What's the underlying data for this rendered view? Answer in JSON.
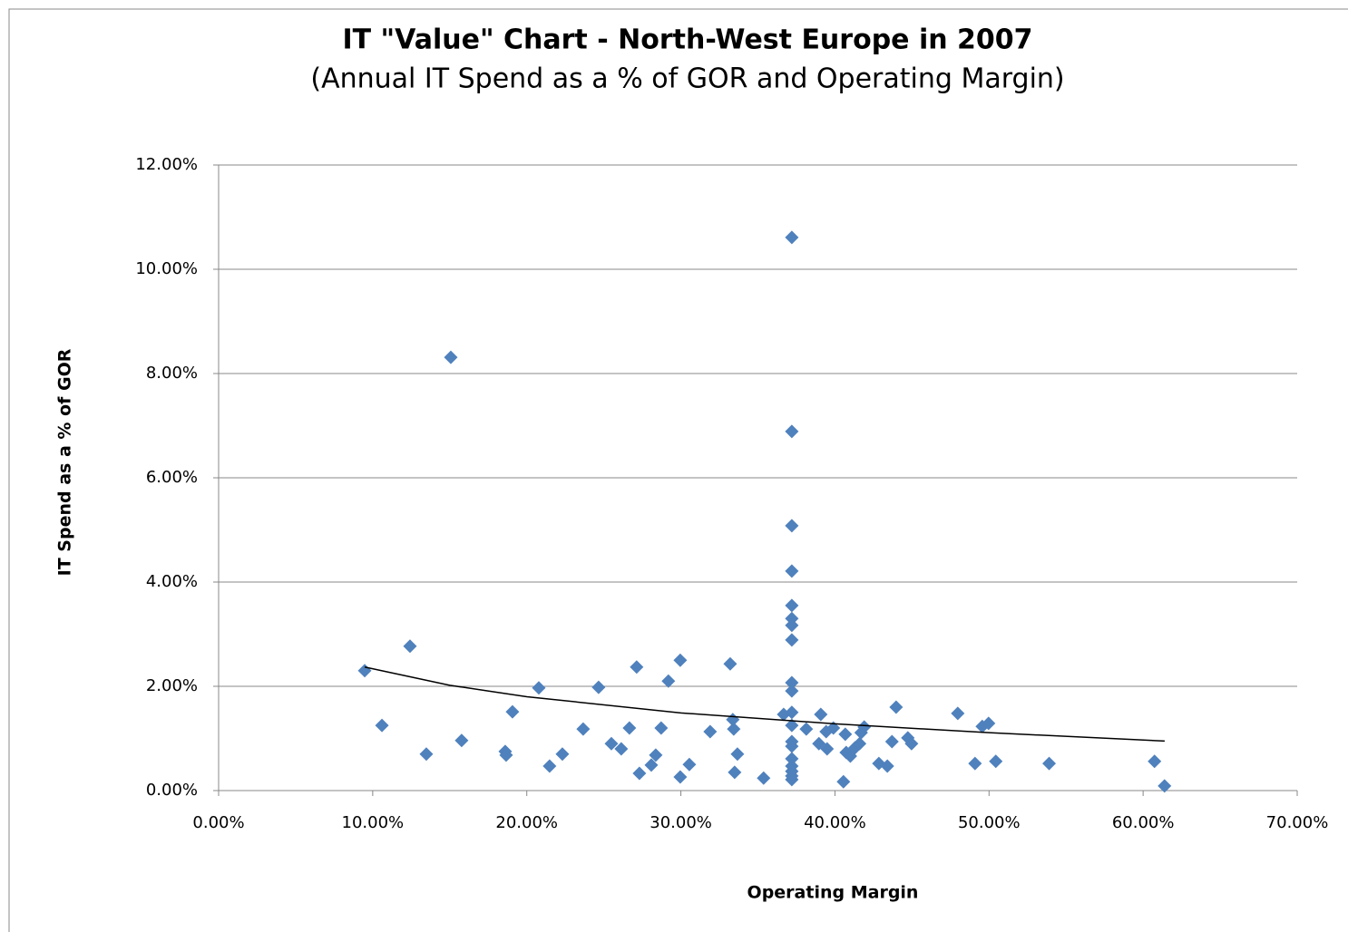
{
  "chart_data": {
    "type": "scatter",
    "title": "IT \"Value\" Chart - North-West Europe in 2007",
    "subtitle": "(Annual IT Spend as a % of GOR and Operating Margin)",
    "x_label": "Operating Margin",
    "y_label": "IT Spend as a % of GOR",
    "xlim": [
      0,
      70
    ],
    "xticks": [
      {
        "value": 0,
        "label": "0.00%"
      },
      {
        "value": 10,
        "label": "10.00%"
      },
      {
        "value": 20,
        "label": "20.00%"
      },
      {
        "value": 30,
        "label": "30.00%"
      },
      {
        "value": 40,
        "label": "40.00%"
      },
      {
        "value": 50,
        "label": "50.00%"
      },
      {
        "value": 60,
        "label": "60.00%"
      },
      {
        "value": 70,
        "label": "70.00%"
      }
    ],
    "ylim": [
      0,
      12
    ],
    "yticks": [
      {
        "value": 0,
        "label": "0.00%"
      },
      {
        "value": 2,
        "label": "2.00%"
      },
      {
        "value": 4,
        "label": "4.00%"
      },
      {
        "value": 6,
        "label": "6.00%"
      },
      {
        "value": 8,
        "label": "8.00%"
      },
      {
        "value": 10,
        "label": "10.00%"
      },
      {
        "value": 12,
        "label": "12.00%"
      }
    ],
    "grid": true,
    "series": [
      {
        "color": "#4f81bd",
        "x": [
          9.48,
          10.6,
          12.42,
          13.48,
          15.07,
          15.77,
          18.6,
          18.66,
          19.07,
          20.78,
          21.48,
          22.31,
          23.66,
          24.66,
          25.49,
          26.13,
          26.66,
          27.13,
          27.31,
          28.08,
          28.37,
          28.72,
          29.19,
          29.96,
          29.96,
          30.55,
          31.9,
          33.2,
          33.37,
          33.43,
          33.49,
          33.67,
          35.37,
          36.67,
          37.2,
          37.2,
          37.2,
          37.2,
          37.2,
          37.2,
          37.2,
          37.2,
          37.2,
          37.2,
          37.2,
          37.2,
          37.2,
          37.2,
          37.2,
          37.2,
          37.2,
          37.2,
          37.2,
          38.14,
          39.08,
          38.96,
          39.49,
          39.43,
          39.9,
          40.55,
          40.67,
          40.73,
          41.0,
          41.3,
          41.6,
          41.7,
          41.9,
          42.85,
          43.4,
          43.7,
          43.97,
          44.73,
          44.97,
          47.97,
          49.09,
          49.56,
          49.97,
          50.44,
          53.9,
          60.74,
          61.39
        ],
        "values": [
          2.3,
          1.25,
          2.77,
          0.7,
          8.31,
          0.96,
          0.75,
          0.68,
          1.51,
          1.97,
          0.47,
          0.7,
          1.18,
          1.98,
          0.9,
          0.8,
          1.2,
          2.37,
          0.33,
          0.49,
          0.68,
          1.2,
          2.1,
          2.5,
          0.26,
          0.5,
          1.13,
          2.43,
          1.36,
          1.18,
          0.35,
          0.7,
          0.24,
          1.46,
          10.61,
          6.89,
          5.08,
          4.21,
          3.55,
          3.3,
          3.17,
          2.89,
          2.07,
          1.91,
          1.5,
          1.25,
          0.94,
          0.85,
          0.61,
          0.47,
          0.37,
          0.28,
          0.21,
          1.18,
          1.46,
          0.9,
          0.8,
          1.13,
          1.2,
          0.17,
          1.08,
          0.73,
          0.66,
          0.82,
          0.9,
          1.11,
          1.22,
          0.52,
          0.47,
          0.94,
          1.6,
          1.01,
          0.9,
          1.48,
          0.52,
          1.23,
          1.29,
          0.56,
          0.52,
          0.56,
          0.09
        ]
      }
    ],
    "trendline": {
      "color": "#000000",
      "x": [
        9.48,
        15,
        20,
        30,
        40,
        50,
        61.4
      ],
      "values": [
        2.37,
        2.02,
        1.8,
        1.49,
        1.28,
        1.11,
        0.95
      ]
    }
  }
}
